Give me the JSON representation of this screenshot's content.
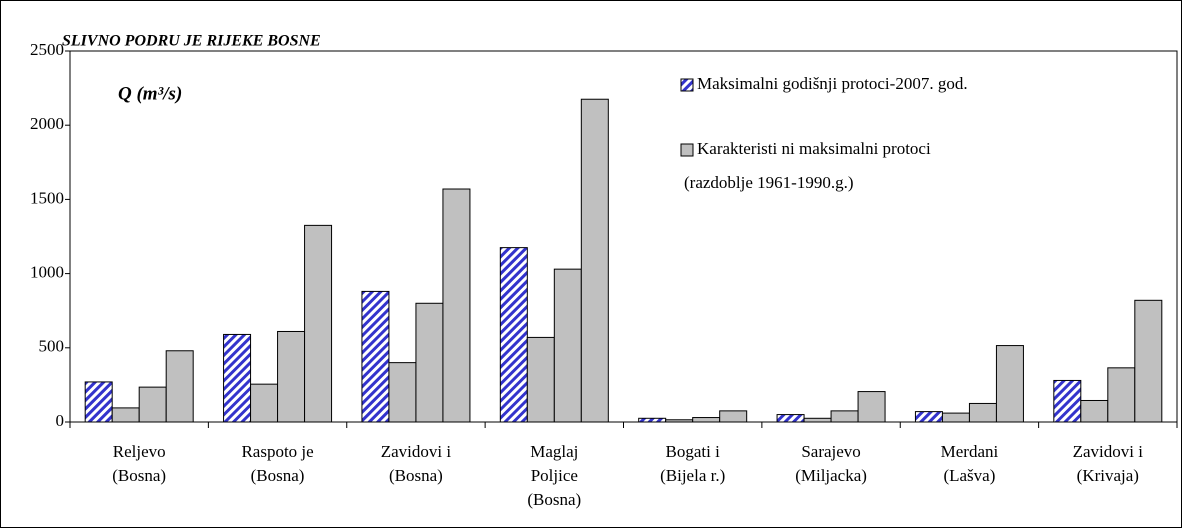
{
  "chart_data": {
    "type": "bar",
    "title": "SLIVNO PODRU JE RIJEKE BOSNE",
    "y_label": "Q (m³/s)",
    "categories": [
      [
        "Reljevo",
        "(Bosna)"
      ],
      [
        "Raspoto je",
        "(Bosna)"
      ],
      [
        "Zavidovi i",
        "(Bosna)"
      ],
      [
        "Maglaj",
        "Poljice",
        "(Bosna)"
      ],
      [
        "Bogati i",
        "(Bijela r.)"
      ],
      [
        "Sarajevo",
        "(Miljacka)"
      ],
      [
        "Merdani",
        "(Lašva)"
      ],
      [
        "Zavidovi i",
        "(Krivaja)"
      ]
    ],
    "series": [
      {
        "name": [
          "Maksimalni godišnji protoci-2007. god."
        ],
        "color": "#3333cc",
        "hatch": true,
        "values": [
          270,
          590,
          880,
          1175,
          25,
          50,
          70,
          280
        ]
      },
      {
        "name": [
          "Karakteristi ni maksimalni protoci",
          "(razdoblje 1961-1990.g.)"
        ],
        "color": "#c0c0c0",
        "values": [
          95,
          255,
          400,
          570,
          15,
          25,
          60,
          145
        ]
      },
      {
        "color": "#c0c0c0",
        "values": [
          235,
          610,
          800,
          1030,
          30,
          75,
          125,
          365
        ]
      },
      {
        "color": "#c0c0c0",
        "values": [
          480,
          1325,
          1570,
          2175,
          75,
          205,
          515,
          820
        ]
      }
    ],
    "ylim": [
      0,
      2500
    ],
    "yticks": [
      0,
      500,
      1000,
      1500,
      2000,
      2500
    ],
    "grid": false
  }
}
